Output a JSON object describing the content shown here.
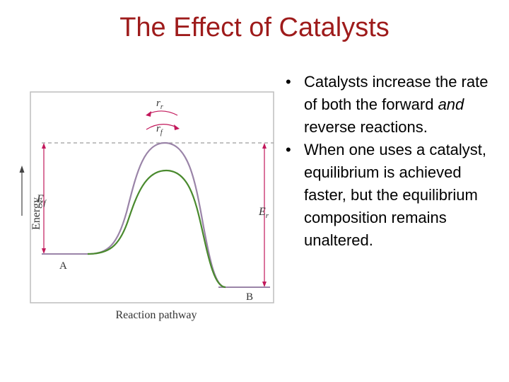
{
  "slide": {
    "title": "The Effect of Catalysts",
    "bullets": [
      {
        "before": "Catalysts increase the rate of both the forward ",
        "emph": "and",
        "after": " reverse reactions."
      },
      {
        "text": "When one uses a catalyst, equilibrium is achieved faster, but the equilibrium composition remains unaltered."
      }
    ]
  },
  "diagram": {
    "y_axis_label": "Energy",
    "x_axis_label": "Reaction pathway",
    "point_a": "A",
    "point_b": "B",
    "ef_main": "E",
    "ef_sub": "f",
    "er_main": "E",
    "er_sub": "r",
    "rr_main": "r",
    "rr_sub": "r",
    "rf_main": "r",
    "rf_sub": "f",
    "colors": {
      "uncatalyzed": "#9a84a8",
      "catalyzed": "#4a8a2e",
      "arrows": "#c2185b",
      "axes": "#444444",
      "frame": "#bdbdbd"
    }
  }
}
